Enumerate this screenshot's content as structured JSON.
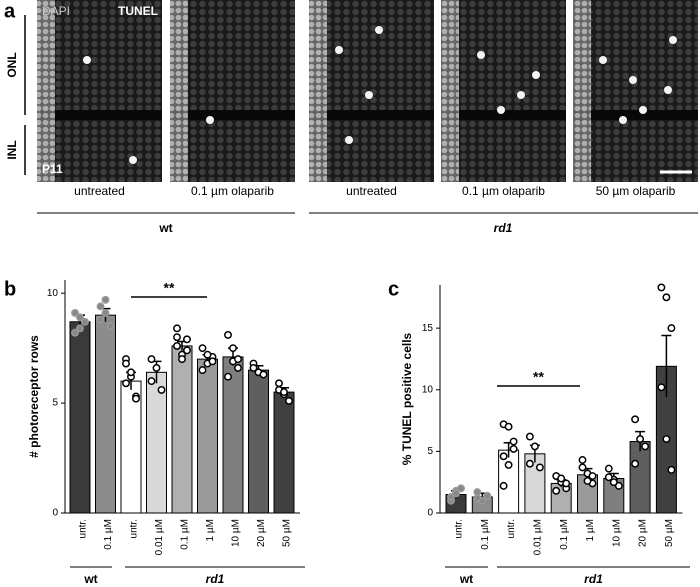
{
  "panel_a": {
    "label": "a",
    "channels": [
      "DAPI",
      "TUNEL"
    ],
    "stage": "P11",
    "layers": [
      "ONL",
      "INL"
    ],
    "captions": [
      "untreated",
      "0.1 µm olaparib",
      "untreated",
      "0.1 µm olaparib",
      "50 µm olaparib"
    ],
    "groups": [
      "wt",
      "rd1"
    ]
  },
  "chart_data": [
    {
      "type": "bar",
      "label": "b",
      "ylabel": "# photoreceptor rows",
      "categories": [
        "untr.",
        "0.1 µM",
        "untr.",
        "0.01 µM",
        "0.1 µM",
        "1 µM",
        "10 µM",
        "20 µM",
        "50 µM"
      ],
      "values": [
        8.7,
        9.0,
        6.0,
        6.4,
        7.6,
        7.0,
        7.1,
        6.5,
        5.5
      ],
      "errors": [
        0.3,
        0.3,
        0.4,
        0.5,
        0.2,
        0.2,
        0.4,
        0.2,
        0.2
      ],
      "points": [
        [
          9.1,
          8.4,
          8.7,
          8.2,
          8.9
        ],
        [
          9.4,
          9.1,
          8.5,
          8.8,
          9.7
        ],
        [
          7.0,
          6.2,
          5.3,
          5.9,
          6.4,
          5.2,
          6.8
        ],
        [
          7.0,
          6.6,
          5.6,
          6.0
        ],
        [
          8.4,
          7.2,
          7.9,
          7.6,
          7.0,
          7.4,
          8.0
        ],
        [
          7.5,
          6.8,
          7.1,
          6.5,
          7.2,
          6.9
        ],
        [
          8.1,
          6.9,
          7.0,
          6.2,
          7.5,
          6.6
        ],
        [
          6.8,
          6.4,
          6.3,
          6.6
        ],
        [
          5.9,
          5.4,
          5.1,
          5.6,
          5.5
        ]
      ],
      "colors": [
        "#3a3a3a",
        "#8c8c8c",
        "#ffffff",
        "#d9d9d9",
        "#b0b0b0",
        "#9a9a9a",
        "#7f7f7f",
        "#5f5f5f",
        "#404040"
      ],
      "ylim": [
        0,
        10.6
      ],
      "yticks": [
        0,
        5,
        10
      ],
      "annotation": "**",
      "groups": [
        "wt",
        "rd1"
      ]
    },
    {
      "type": "bar",
      "label": "c",
      "ylabel": "% TUNEL positive cells",
      "categories": [
        "untr.",
        "0.1 µM",
        "untr.",
        "0.01 µM",
        "0.1 µM",
        "1 µM",
        "10 µM",
        "20 µM",
        "50 µM"
      ],
      "values": [
        1.5,
        1.3,
        5.1,
        4.8,
        2.4,
        3.1,
        2.8,
        5.8,
        11.9
      ],
      "errors": [
        0.3,
        0.3,
        0.6,
        0.7,
        0.3,
        0.5,
        0.4,
        0.8,
        2.5
      ],
      "points": [
        [
          1.0,
          1.8,
          2.0,
          1.3,
          1.6
        ],
        [
          1.7,
          1.0,
          1.4,
          1.2
        ],
        [
          7.2,
          7.0,
          5.8,
          4.6,
          3.9,
          5.2,
          2.2
        ],
        [
          6.2,
          5.4,
          3.7,
          4.0
        ],
        [
          3.0,
          2.5,
          2.0,
          1.8,
          2.8,
          2.4
        ],
        [
          4.3,
          3.2,
          2.4,
          3.7,
          2.6,
          3.0
        ],
        [
          3.6,
          2.7,
          2.2,
          2.9,
          2.5
        ],
        [
          7.6,
          6.0,
          5.4,
          4.0
        ],
        [
          18.3,
          17.5,
          15.0,
          10.2,
          6.0,
          3.5
        ]
      ],
      "colors": [
        "#3a3a3a",
        "#8c8c8c",
        "#ffffff",
        "#d9d9d9",
        "#b0b0b0",
        "#9a9a9a",
        "#7f7f7f",
        "#5f5f5f",
        "#404040"
      ],
      "ylim": [
        0,
        18.5
      ],
      "yticks": [
        0,
        5,
        10,
        15
      ],
      "annotation": "**",
      "groups": [
        "wt",
        "rd1"
      ]
    }
  ]
}
